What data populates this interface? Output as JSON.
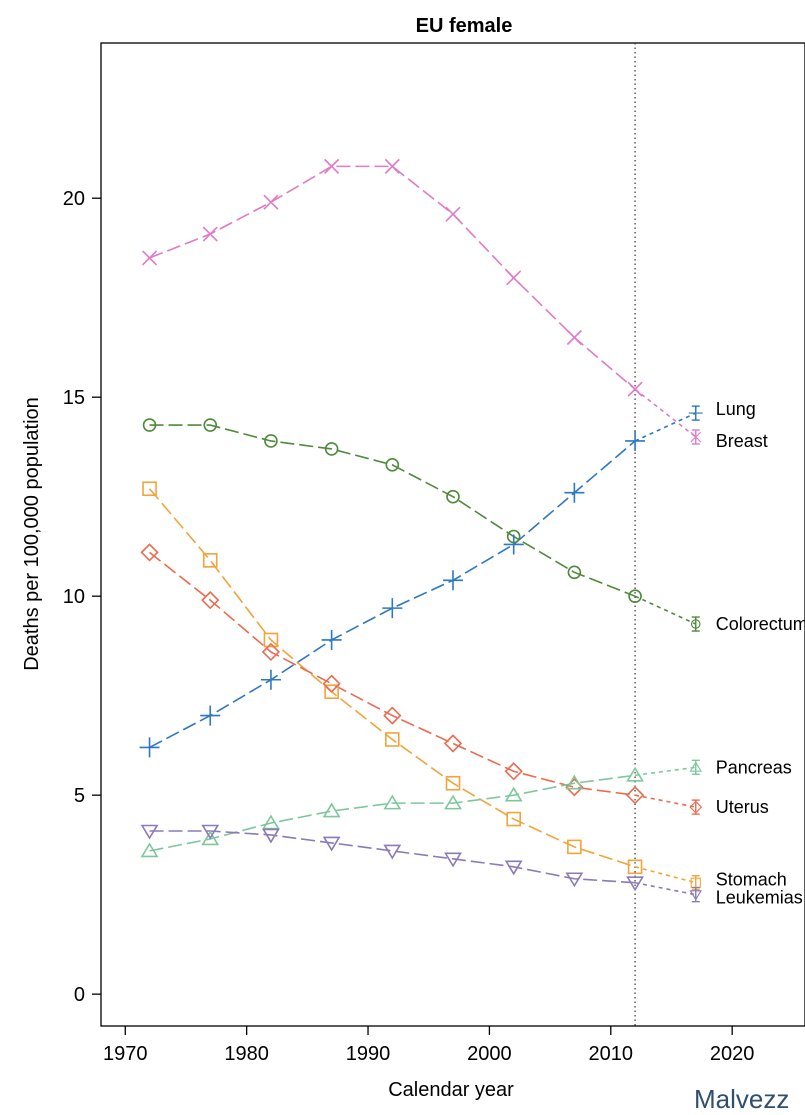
{
  "credit": "Malvezz",
  "chart_data": {
    "type": "line",
    "title": "EU female",
    "xlabel": "Calendar year",
    "ylabel": "Deaths per 100,000 population",
    "xlim": [
      1968,
      2026
    ],
    "ylim": [
      -0.8,
      23.9
    ],
    "xticks": [
      1970,
      1980,
      1990,
      2000,
      2010,
      2020
    ],
    "yticks": [
      0,
      5,
      10,
      15,
      20
    ],
    "x": [
      1972,
      1977,
      1982,
      1987,
      1992,
      1997,
      2002,
      2007,
      2012
    ],
    "x_pred": 2017,
    "vline_x": 2012,
    "grid": false,
    "series": [
      {
        "name": "Breast",
        "color": "#e07bc4",
        "marker": "x",
        "values": [
          18.5,
          19.1,
          19.9,
          20.8,
          20.8,
          19.6,
          18.0,
          16.5,
          15.2
        ],
        "predicted": 14.0
      },
      {
        "name": "Lung",
        "color": "#2e77c4",
        "marker": "plus",
        "values": [
          6.2,
          7.0,
          7.9,
          8.9,
          9.7,
          10.4,
          11.3,
          12.6,
          13.9
        ],
        "predicted": 14.6
      },
      {
        "name": "Colorectum",
        "color": "#4e8a3a",
        "marker": "circle",
        "values": [
          14.3,
          14.3,
          13.9,
          13.7,
          13.3,
          12.5,
          11.5,
          10.6,
          10.0
        ],
        "predicted": 9.3
      },
      {
        "name": "Stomach",
        "color": "#f2a43a",
        "marker": "square",
        "values": [
          12.7,
          10.9,
          8.9,
          7.6,
          6.4,
          5.3,
          4.4,
          3.7,
          3.2
        ],
        "predicted": 2.8
      },
      {
        "name": "Uterus",
        "color": "#ec6a4e",
        "marker": "diamond",
        "values": [
          11.1,
          9.9,
          8.6,
          7.8,
          7.0,
          6.3,
          5.6,
          5.2,
          5.0
        ],
        "predicted": 4.7
      },
      {
        "name": "Pancreas",
        "color": "#7ec79b",
        "marker": "triangle-up",
        "values": [
          3.6,
          3.9,
          4.3,
          4.6,
          4.8,
          4.8,
          5.0,
          5.3,
          5.5
        ],
        "predicted": 5.7
      },
      {
        "name": "Leukemias",
        "color": "#8a7ab8",
        "marker": "triangle-down",
        "values": [
          4.1,
          4.1,
          4.0,
          3.8,
          3.6,
          3.4,
          3.2,
          2.9,
          2.8
        ],
        "predicted": 2.5
      }
    ],
    "end_labels": [
      {
        "series": "Lung",
        "text": "Lung"
      },
      {
        "series": "Breast",
        "text": "Breast"
      },
      {
        "series": "Colorectum",
        "text": "Colorectum"
      },
      {
        "series": "Pancreas",
        "text": "Pancreas"
      },
      {
        "series": "Uterus",
        "text": "Uterus"
      },
      {
        "series": "Stomach",
        "text": "Stomach"
      },
      {
        "series": "Leukemias",
        "text": "Leukemias"
      }
    ]
  }
}
